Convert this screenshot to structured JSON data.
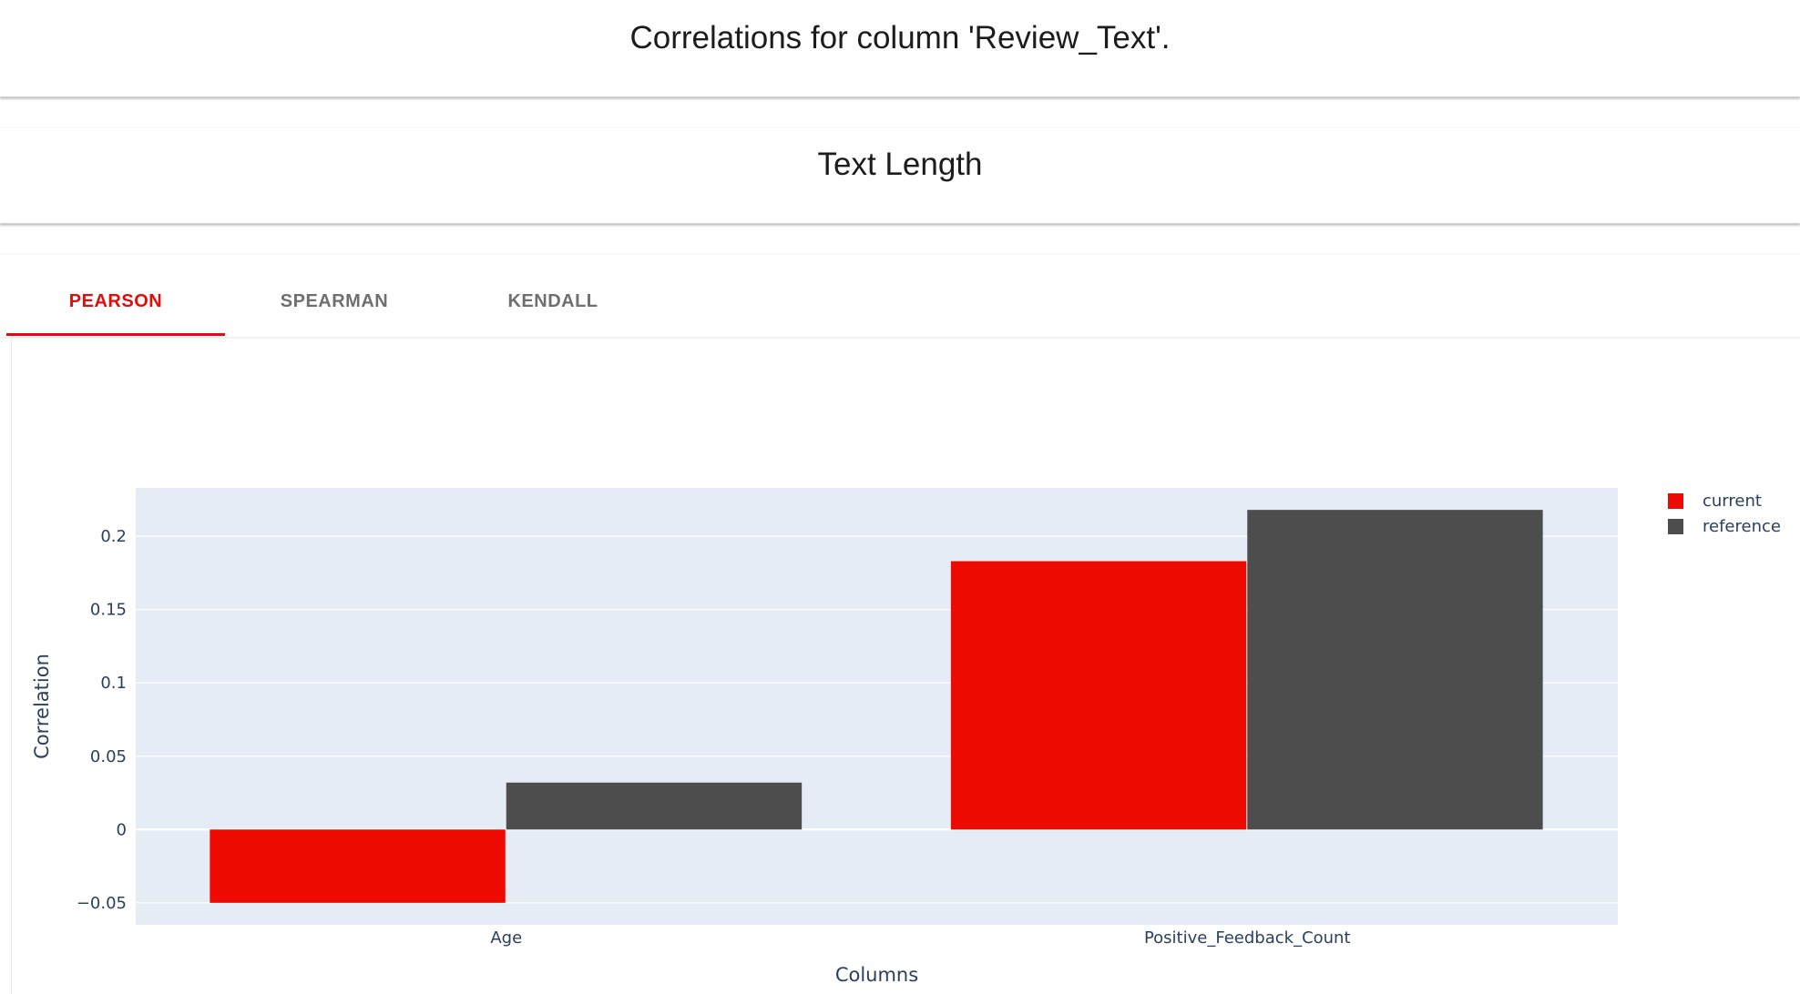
{
  "header": {
    "title": "Correlations for column 'Review_Text'.",
    "subtitle": "Text Length"
  },
  "tabs": [
    {
      "label": "PEARSON",
      "active": true
    },
    {
      "label": "SPEARMAN",
      "active": false
    },
    {
      "label": "KENDALL",
      "active": false
    }
  ],
  "colors": {
    "accent": "#e50b0b",
    "current": "#ed0a00",
    "reference": "#4d4d4d",
    "plot_bg": "#e5ecf6",
    "axis_text": "#2a3f5f"
  },
  "chart_data": {
    "type": "bar",
    "title": "",
    "xlabel": "Columns",
    "ylabel": "Correlation",
    "categories": [
      "Age",
      "Positive_Feedback_Count"
    ],
    "series": [
      {
        "name": "current",
        "values": [
          -0.05,
          0.183
        ]
      },
      {
        "name": "reference",
        "values": [
          0.032,
          0.218
        ]
      }
    ],
    "ylim": [
      -0.065,
      0.233
    ],
    "yticks": [
      -0.05,
      0,
      0.05,
      0.1,
      0.15,
      0.2
    ],
    "ytick_labels": [
      "−0.05",
      "0",
      "0.05",
      "0.1",
      "0.15",
      "0.2"
    ],
    "grid": true,
    "legend": "top-right"
  }
}
